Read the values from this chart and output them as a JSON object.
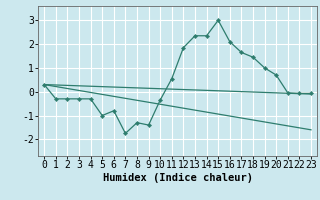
{
  "title": "",
  "xlabel": "Humidex (Indice chaleur)",
  "ylabel": "",
  "bg_color": "#cce8ee",
  "grid_color": "#ffffff",
  "line_color": "#2e7d6e",
  "xlim": [
    -0.5,
    23.5
  ],
  "ylim": [
    -2.7,
    3.6
  ],
  "xticks": [
    0,
    1,
    2,
    3,
    4,
    5,
    6,
    7,
    8,
    9,
    10,
    11,
    12,
    13,
    14,
    15,
    16,
    17,
    18,
    19,
    20,
    21,
    22,
    23
  ],
  "yticks": [
    -2,
    -1,
    0,
    1,
    2,
    3
  ],
  "line1_x": [
    0,
    1,
    2,
    3,
    4,
    5,
    6,
    7,
    8,
    9,
    10,
    11,
    12,
    13,
    14,
    15,
    16,
    17,
    18,
    19,
    20,
    21,
    22,
    23
  ],
  "line1_y": [
    0.3,
    -0.3,
    -0.3,
    -0.3,
    -0.3,
    -1.0,
    -0.8,
    -1.75,
    -1.3,
    -1.4,
    -0.35,
    0.55,
    1.85,
    2.35,
    2.35,
    3.0,
    2.1,
    1.65,
    1.45,
    1.0,
    0.7,
    -0.05,
    -0.07,
    -0.07
  ],
  "line2_x": [
    0,
    23
  ],
  "line2_y": [
    0.3,
    -0.1
  ],
  "line3_x": [
    0,
    23
  ],
  "line3_y": [
    0.3,
    -1.6
  ],
  "font_size": 7,
  "xlabel_fontsize": 7.5
}
